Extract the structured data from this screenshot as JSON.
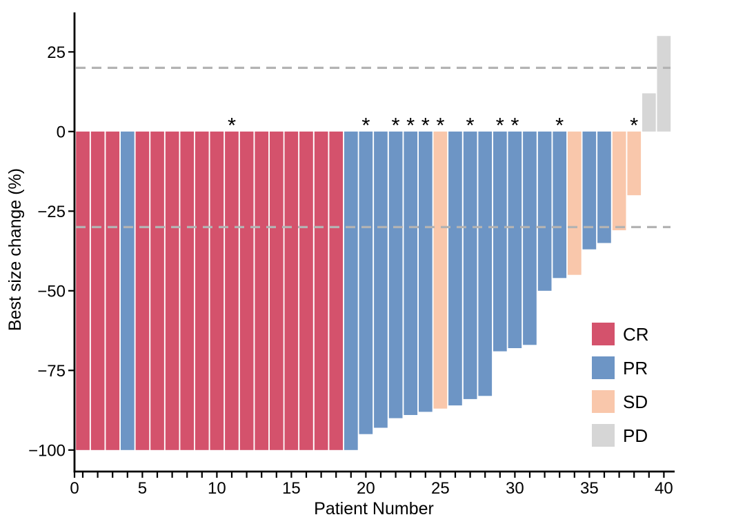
{
  "chart_data": {
    "type": "bar",
    "subtype": "waterfall",
    "title": "",
    "xlabel": "Patient Number",
    "ylabel": "Best size change (%)",
    "xlim": [
      0,
      41
    ],
    "ylim": [
      -107,
      38
    ],
    "x_labeled_ticks": [
      0,
      5,
      10,
      15,
      20,
      25,
      30,
      35,
      40
    ],
    "x_minor_tick_every": 1,
    "y_ticks": [
      25,
      0,
      -25,
      -50,
      -75,
      -100
    ],
    "grid": false,
    "reference_lines": [
      {
        "value": 20,
        "style": "dashed"
      },
      {
        "value": -30,
        "style": "dashed"
      }
    ],
    "annotation_symbol": "*",
    "legend": {
      "position": "inside-right",
      "entries": [
        {
          "label": "CR",
          "color": "#D4526C"
        },
        {
          "label": "PR",
          "color": "#6D95C5"
        },
        {
          "label": "SD",
          "color": "#F9C7AB"
        },
        {
          "label": "PD",
          "color": "#D6D6D6"
        }
      ]
    },
    "colors": {
      "CR": "#D4526C",
      "PR": "#6D95C5",
      "SD": "#F9C7AB",
      "PD": "#D6D6D6",
      "reference_line": "#B3B3B3",
      "axis": "#000000",
      "annotation": "#000000"
    },
    "patients": [
      {
        "patient": 1,
        "value": -100,
        "response": "CR",
        "asterisk": false
      },
      {
        "patient": 2,
        "value": -100,
        "response": "CR",
        "asterisk": false
      },
      {
        "patient": 3,
        "value": -100,
        "response": "CR",
        "asterisk": false
      },
      {
        "patient": 4,
        "value": -100,
        "response": "PR",
        "asterisk": false
      },
      {
        "patient": 5,
        "value": -100,
        "response": "CR",
        "asterisk": false
      },
      {
        "patient": 6,
        "value": -100,
        "response": "CR",
        "asterisk": false
      },
      {
        "patient": 7,
        "value": -100,
        "response": "CR",
        "asterisk": false
      },
      {
        "patient": 8,
        "value": -100,
        "response": "CR",
        "asterisk": false
      },
      {
        "patient": 9,
        "value": -100,
        "response": "CR",
        "asterisk": false
      },
      {
        "patient": 10,
        "value": -100,
        "response": "CR",
        "asterisk": false
      },
      {
        "patient": 11,
        "value": -100,
        "response": "CR",
        "asterisk": true
      },
      {
        "patient": 12,
        "value": -100,
        "response": "CR",
        "asterisk": false
      },
      {
        "patient": 13,
        "value": -100,
        "response": "CR",
        "asterisk": false
      },
      {
        "patient": 14,
        "value": -100,
        "response": "CR",
        "asterisk": false
      },
      {
        "patient": 15,
        "value": -100,
        "response": "CR",
        "asterisk": false
      },
      {
        "patient": 16,
        "value": -100,
        "response": "CR",
        "asterisk": false
      },
      {
        "patient": 17,
        "value": -100,
        "response": "CR",
        "asterisk": false
      },
      {
        "patient": 18,
        "value": -100,
        "response": "CR",
        "asterisk": false
      },
      {
        "patient": 19,
        "value": -100,
        "response": "PR",
        "asterisk": false
      },
      {
        "patient": 20,
        "value": -95,
        "response": "PR",
        "asterisk": true
      },
      {
        "patient": 21,
        "value": -93,
        "response": "PR",
        "asterisk": false
      },
      {
        "patient": 22,
        "value": -90,
        "response": "PR",
        "asterisk": true
      },
      {
        "patient": 23,
        "value": -89,
        "response": "PR",
        "asterisk": true
      },
      {
        "patient": 24,
        "value": -88,
        "response": "PR",
        "asterisk": true
      },
      {
        "patient": 25,
        "value": -87,
        "response": "SD",
        "asterisk": true
      },
      {
        "patient": 26,
        "value": -86,
        "response": "PR",
        "asterisk": false
      },
      {
        "patient": 27,
        "value": -84,
        "response": "PR",
        "asterisk": true
      },
      {
        "patient": 28,
        "value": -83,
        "response": "PR",
        "asterisk": false
      },
      {
        "patient": 29,
        "value": -69,
        "response": "PR",
        "asterisk": true
      },
      {
        "patient": 30,
        "value": -68,
        "response": "PR",
        "asterisk": true
      },
      {
        "patient": 31,
        "value": -67,
        "response": "PR",
        "asterisk": false
      },
      {
        "patient": 32,
        "value": -50,
        "response": "PR",
        "asterisk": false
      },
      {
        "patient": 33,
        "value": -46,
        "response": "PR",
        "asterisk": true
      },
      {
        "patient": 34,
        "value": -45,
        "response": "SD",
        "asterisk": false
      },
      {
        "patient": 35,
        "value": -37,
        "response": "PR",
        "asterisk": false
      },
      {
        "patient": 36,
        "value": -35,
        "response": "PR",
        "asterisk": false
      },
      {
        "patient": 37,
        "value": -31,
        "response": "SD",
        "asterisk": false
      },
      {
        "patient": 38,
        "value": -20,
        "response": "SD",
        "asterisk": true
      },
      {
        "patient": 39,
        "value": 12,
        "response": "PD",
        "asterisk": false
      },
      {
        "patient": 40,
        "value": 30,
        "response": "PD",
        "asterisk": false
      }
    ]
  }
}
